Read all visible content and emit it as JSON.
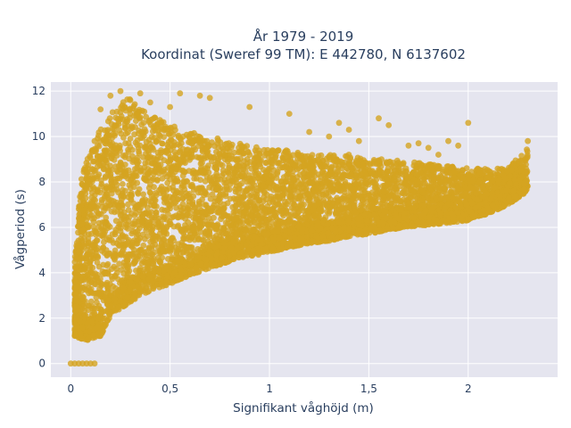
{
  "chart_data": {
    "type": "scatter",
    "title_line1": "År 1979 - 2019",
    "title_line2": "Koordinat (Sweref 99 TM): E 442780, N 6137602",
    "xlabel": "Signifikant våghöjd (m)",
    "ylabel": "Vågperiod (s)",
    "xlim": [
      -0.1,
      2.45
    ],
    "ylim": [
      -0.6,
      12.4
    ],
    "xticks": [
      0,
      0.5,
      1,
      1.5,
      2
    ],
    "xtick_labels": [
      "0",
      "0,5",
      "1",
      "1,5",
      "2"
    ],
    "yticks": [
      0,
      2,
      4,
      6,
      8,
      10,
      12
    ],
    "ytick_labels": [
      "0",
      "2",
      "4",
      "6",
      "8",
      "10",
      "12"
    ],
    "grid": true,
    "background_color": "#e5e5ef",
    "marker_color": "#d4a420",
    "series": [
      {
        "envelope": {
          "x": [
            0.02,
            0.05,
            0.08,
            0.1,
            0.15,
            0.2,
            0.25,
            0.3,
            0.35,
            0.4,
            0.5,
            0.6,
            0.7,
            0.8,
            0.9,
            1.0,
            1.1,
            1.2,
            1.3,
            1.4,
            1.5,
            1.6,
            1.7,
            1.8,
            1.9,
            2.0,
            2.1,
            2.2,
            2.3
          ],
          "y_lower": [
            1.2,
            1.1,
            1.0,
            1.1,
            1.2,
            2.1,
            2.4,
            2.7,
            3.0,
            3.2,
            3.5,
            3.9,
            4.2,
            4.5,
            4.7,
            4.9,
            5.1,
            5.3,
            5.4,
            5.6,
            5.7,
            5.9,
            6.0,
            6.1,
            6.2,
            6.3,
            6.6,
            7.0,
            7.6
          ],
          "y_upper": [
            4.5,
            8.0,
            9.0,
            9.5,
            10.5,
            11.0,
            11.5,
            11.7,
            11.3,
            11.0,
            10.5,
            10.2,
            10.0,
            9.8,
            9.6,
            9.4,
            9.4,
            9.2,
            9.2,
            9.2,
            9.0,
            9.0,
            8.9,
            8.8,
            8.7,
            8.6,
            8.6,
            8.6,
            9.5
          ]
        },
        "zero_points": {
          "x": [
            0.0,
            0.02,
            0.04,
            0.06,
            0.08,
            0.1,
            0.12
          ],
          "y": [
            0,
            0,
            0,
            0,
            0,
            0,
            0
          ]
        },
        "outliers": {
          "x": [
            0.08,
            0.12,
            0.15,
            0.2,
            0.25,
            0.3,
            0.35,
            0.4,
            0.5,
            0.55,
            0.65,
            0.7,
            0.9,
            1.1,
            1.2,
            1.3,
            1.35,
            1.4,
            1.45,
            1.55,
            1.6,
            1.7,
            1.75,
            1.8,
            1.85,
            1.9,
            1.95,
            2.0,
            2.3
          ],
          "y": [
            8.2,
            9.8,
            11.2,
            11.8,
            12.0,
            11.6,
            11.9,
            11.5,
            11.3,
            11.9,
            11.8,
            11.7,
            11.3,
            11.0,
            10.2,
            10.0,
            10.6,
            10.3,
            9.8,
            10.8,
            10.5,
            9.6,
            9.7,
            9.5,
            9.2,
            9.8,
            9.6,
            10.6,
            9.8
          ]
        }
      }
    ]
  }
}
